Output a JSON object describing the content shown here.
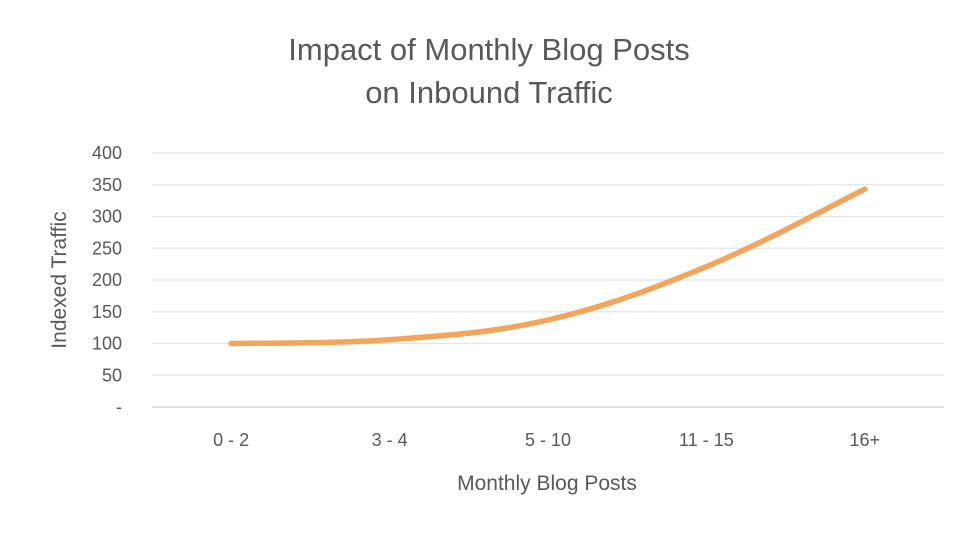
{
  "chart_data": {
    "type": "line",
    "title_line1": "Impact of Monthly Blog Posts",
    "title_line2": "on Inbound Traffic",
    "xlabel": "Monthly Blog Posts",
    "ylabel": "Indexed Traffic",
    "categories": [
      "0 - 2",
      "3 - 4",
      "5 - 10",
      "11 - 15",
      "16+"
    ],
    "y_tick_labels": [
      "-",
      "50",
      "100",
      "150",
      "200",
      "250",
      "300",
      "350",
      "400"
    ],
    "ylim": [
      0,
      400
    ],
    "grid": true,
    "series": [
      {
        "values": [
          100,
          106,
          137,
          221,
          343
        ],
        "color": "#F2A55B"
      }
    ]
  }
}
